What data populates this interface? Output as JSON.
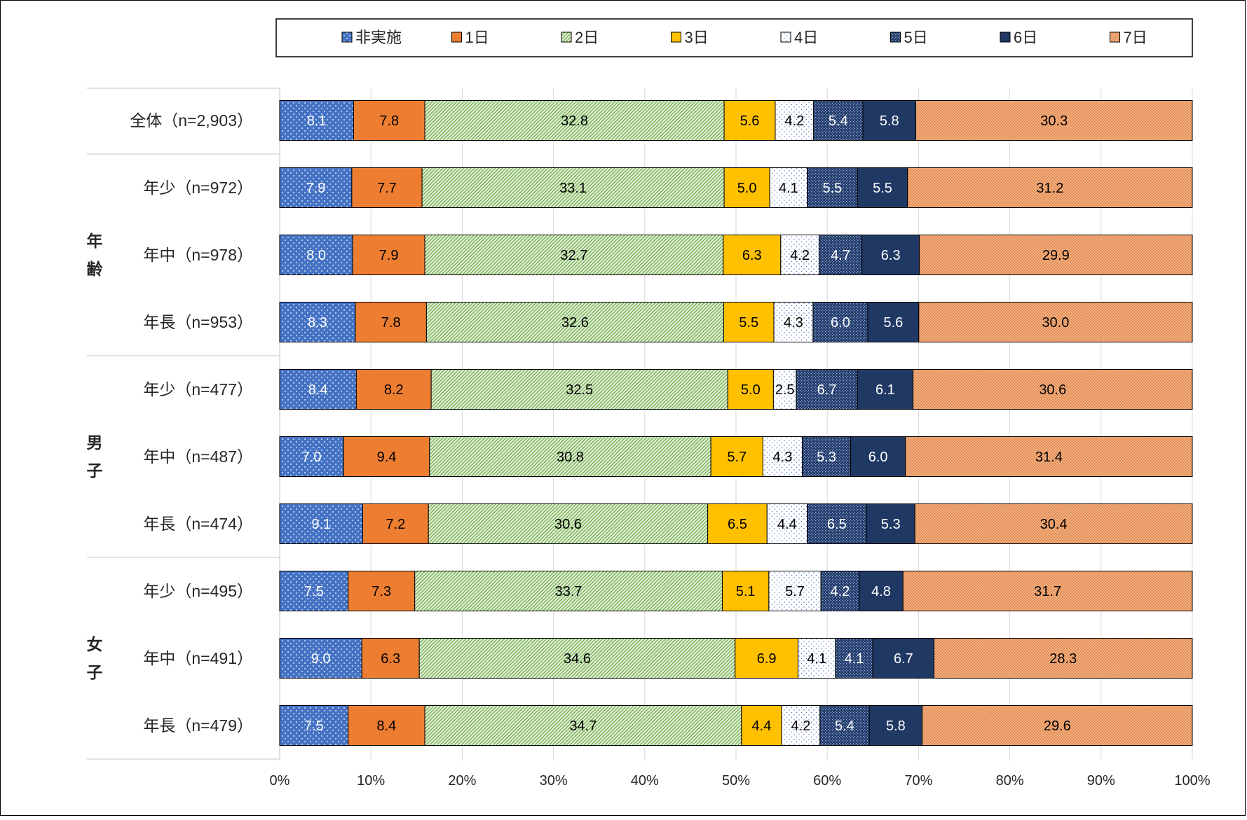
{
  "chart_data": {
    "type": "bar",
    "orientation": "horizontal",
    "stacked": "percent",
    "xlim": [
      0,
      100
    ],
    "x_ticks": [
      "0%",
      "10%",
      "20%",
      "30%",
      "40%",
      "50%",
      "60%",
      "70%",
      "80%",
      "90%",
      "100%"
    ],
    "grid": true,
    "legend_position": "top",
    "groups": [
      {
        "label": "",
        "rows": [
          0
        ]
      },
      {
        "label": "年齢",
        "rows": [
          1,
          2,
          3
        ]
      },
      {
        "label": "男子",
        "rows": [
          4,
          5,
          6
        ]
      },
      {
        "label": "女子",
        "rows": [
          7,
          8,
          9
        ]
      }
    ],
    "categories": [
      "全体（n=2,903）",
      "年少（n=972）",
      "年中（n=978）",
      "年長（n=953）",
      "年少（n=477）",
      "年中（n=487）",
      "年長（n=474）",
      "年少（n=495）",
      "年中（n=491）",
      "年長（n=479）"
    ],
    "series": [
      {
        "name": "非実施",
        "color": "#4472C4",
        "pattern": "dots-white",
        "values": [
          8.1,
          7.9,
          8.0,
          8.3,
          8.4,
          7.0,
          9.1,
          7.5,
          9.0,
          7.5
        ]
      },
      {
        "name": "1日",
        "color": "#ED7D31",
        "pattern": "solid",
        "values": [
          7.8,
          7.7,
          7.9,
          7.8,
          8.2,
          9.4,
          7.2,
          7.3,
          6.3,
          8.4
        ]
      },
      {
        "name": "2日",
        "color": "#70AD47",
        "pattern": "diagonal-hatch",
        "values": [
          32.8,
          33.1,
          32.7,
          32.6,
          32.5,
          30.8,
          30.6,
          33.7,
          34.6,
          34.7
        ]
      },
      {
        "name": "3日",
        "color": "#FFC000",
        "pattern": "solid",
        "values": [
          5.6,
          5.0,
          6.3,
          5.5,
          5.0,
          5.7,
          6.5,
          5.1,
          6.9,
          4.4
        ]
      },
      {
        "name": "4日",
        "color": "#4472C4",
        "pattern": "sparse-dots",
        "values": [
          4.2,
          4.1,
          4.2,
          4.3,
          2.5,
          4.3,
          4.4,
          5.7,
          4.1,
          4.2
        ]
      },
      {
        "name": "5日",
        "color": "#2F5597",
        "pattern": "checker",
        "values": [
          5.4,
          5.5,
          4.7,
          6.0,
          6.7,
          5.3,
          6.5,
          4.2,
          4.1,
          5.4
        ]
      },
      {
        "name": "6日",
        "color": "#203864",
        "pattern": "solid",
        "values": [
          5.8,
          5.5,
          6.3,
          5.6,
          6.1,
          6.0,
          5.3,
          4.8,
          6.7,
          5.8
        ]
      },
      {
        "name": "7日",
        "color": "#F4B183",
        "pattern": "fine-dots",
        "values": [
          30.3,
          31.2,
          29.9,
          30.0,
          30.6,
          31.4,
          30.4,
          31.7,
          28.3,
          29.6
        ]
      }
    ],
    "label_colors": [
      "#ffffff",
      "#000000",
      "#000000",
      "#000000",
      "#000000",
      "#ffffff",
      "#ffffff",
      "#000000"
    ]
  }
}
